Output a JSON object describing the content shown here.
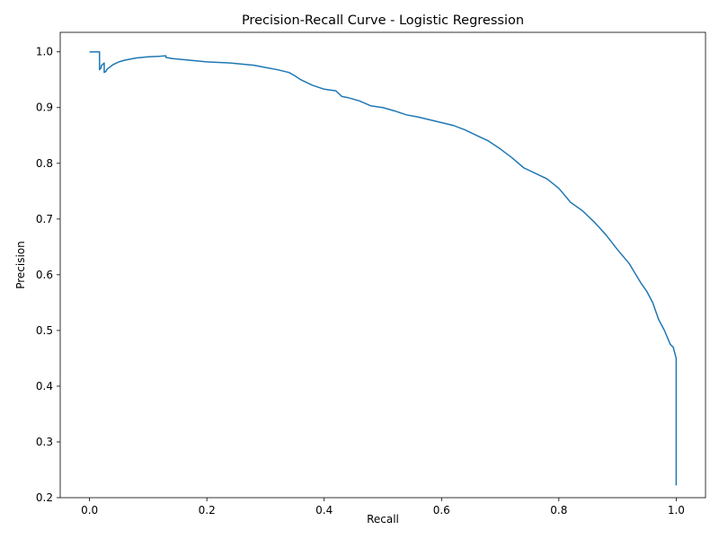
{
  "chart_data": {
    "type": "line",
    "title": "Precision-Recall Curve - Logistic Regression",
    "xlabel": "Recall",
    "ylabel": "Precision",
    "xlim": [
      -0.05,
      1.05
    ],
    "ylim": [
      0.2,
      1.035
    ],
    "xticks": [
      0.0,
      0.2,
      0.4,
      0.6,
      0.8,
      1.0
    ],
    "xtick_labels": [
      "0.0",
      "0.2",
      "0.4",
      "0.6",
      "0.8",
      "1.0"
    ],
    "yticks": [
      0.2,
      0.3,
      0.4,
      0.5,
      0.6,
      0.7,
      0.8,
      0.9,
      1.0
    ],
    "ytick_labels": [
      "0.2",
      "0.3",
      "0.4",
      "0.5",
      "0.6",
      "0.7",
      "0.8",
      "0.9",
      "1.0"
    ],
    "grid": false,
    "line_color": "#1f77b4",
    "series": [
      {
        "x": [
          0.0,
          0.017,
          0.017,
          0.02,
          0.02,
          0.025,
          0.025,
          0.028,
          0.03,
          0.04,
          0.05,
          0.06,
          0.08,
          0.1,
          0.12,
          0.13,
          0.13,
          0.14,
          0.15,
          0.16,
          0.17,
          0.18,
          0.2,
          0.22,
          0.24,
          0.26,
          0.28,
          0.3,
          0.32,
          0.34,
          0.35,
          0.36,
          0.38,
          0.4,
          0.42,
          0.43,
          0.44,
          0.46,
          0.48,
          0.5,
          0.52,
          0.54,
          0.56,
          0.58,
          0.6,
          0.62,
          0.64,
          0.66,
          0.68,
          0.7,
          0.72,
          0.74,
          0.76,
          0.78,
          0.8,
          0.82,
          0.84,
          0.86,
          0.88,
          0.9,
          0.92,
          0.94,
          0.95,
          0.96,
          0.97,
          0.98,
          0.99,
          0.995,
          1.0,
          1.0,
          1.0,
          1.0
        ],
        "y": [
          1.0,
          1.0,
          0.968,
          0.972,
          0.975,
          0.98,
          0.963,
          0.965,
          0.969,
          0.977,
          0.982,
          0.985,
          0.989,
          0.991,
          0.992,
          0.993,
          0.99,
          0.988,
          0.987,
          0.986,
          0.985,
          0.984,
          0.982,
          0.981,
          0.98,
          0.978,
          0.976,
          0.972,
          0.968,
          0.963,
          0.957,
          0.95,
          0.94,
          0.933,
          0.93,
          0.92,
          0.918,
          0.912,
          0.903,
          0.9,
          0.894,
          0.887,
          0.883,
          0.878,
          0.873,
          0.868,
          0.86,
          0.85,
          0.84,
          0.826,
          0.81,
          0.792,
          0.782,
          0.772,
          0.755,
          0.73,
          0.715,
          0.695,
          0.672,
          0.645,
          0.62,
          0.585,
          0.57,
          0.55,
          0.52,
          0.5,
          0.475,
          0.47,
          0.45,
          0.4,
          0.3,
          0.222
        ]
      }
    ]
  }
}
